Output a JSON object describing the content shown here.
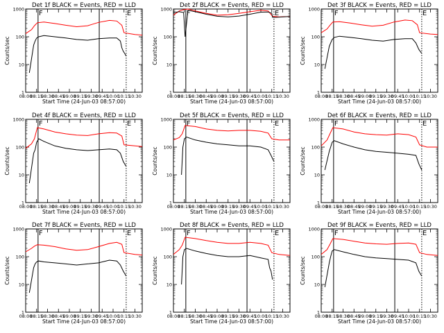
{
  "chart_data": {
    "type": "line",
    "y_scale": "log",
    "ylim": [
      1,
      1000
    ],
    "y_ticks": [
      1,
      10,
      100,
      1000
    ],
    "y_tick_labels": [
      "1",
      "10",
      "100",
      "1000"
    ],
    "x_range": [
      "08:00",
      "10:40"
    ],
    "x_ticks": [
      "08:00",
      "08:15",
      "08:30",
      "08:45",
      "09:00",
      "09:15",
      "09:30",
      "09:45",
      "10:00",
      "10:15",
      "10:30"
    ],
    "x_tick_labels": [
      "08:00",
      "08:15",
      "08:30",
      "08:45",
      "09:00",
      "09:15",
      "09:30",
      "09:45",
      "10:00",
      "10:15",
      "10:30"
    ],
    "xlabel": "Start Time (24-Jun-03 08:57:00)",
    "ylabel": "Counts/sec",
    "colors": {
      "events": "#000000",
      "lld": "#ff0000"
    },
    "markers": [
      {
        "label": "F",
        "time": "08:17",
        "style": "solid"
      },
      {
        "label": "",
        "time": "09:41",
        "style": "solid"
      },
      {
        "label": "E",
        "time": "10:18",
        "style": "dotted"
      }
    ],
    "panels": [
      {
        "title": "Det 1f BLACK = Events, RED = LLD",
        "series": [
          {
            "role": "events",
            "x": [
              "08:05",
              "08:11",
              "08:13",
              "08:15",
              "08:18",
              "08:25",
              "08:40",
              "08:55",
              "09:10",
              "09:25",
              "09:40",
              "09:55",
              "10:05",
              "10:10",
              "10:12",
              "10:14",
              "10:16",
              "10:18"
            ],
            "y": [
              5,
              50,
              70,
              90,
              100,
              110,
              100,
              90,
              80,
              75,
              85,
              90,
              90,
              70,
              40,
              30,
              25,
              20
            ]
          },
          {
            "role": "lld",
            "x": [
              "08:00",
              "08:08",
              "08:12",
              "08:16",
              "08:25",
              "08:40",
              "08:55",
              "09:10",
              "09:25",
              "09:40",
              "09:55",
              "10:05",
              "10:12",
              "10:15",
              "10:30",
              "10:40"
            ],
            "y": [
              130,
              180,
              250,
              320,
              340,
              300,
              260,
              230,
              250,
              330,
              390,
              370,
              260,
              140,
              120,
              115
            ]
          }
        ]
      },
      {
        "title": "Det 2f BLACK = Events, RED = LLD",
        "series": [
          {
            "role": "events",
            "x": [
              "08:00",
              "08:08",
              "08:14",
              "08:16",
              "08:20",
              "08:30",
              "08:45",
              "09:00",
              "09:15",
              "09:30",
              "09:45",
              "10:00",
              "10:10",
              "10:15",
              "10:16",
              "10:20",
              "10:30",
              "10:40"
            ],
            "y": [
              750,
              800,
              750,
              100,
              900,
              800,
              650,
              550,
              520,
              560,
              650,
              770,
              780,
              700,
              500,
              500,
              520,
              540
            ]
          },
          {
            "role": "lld",
            "x": [
              "08:00",
              "08:08",
              "08:14",
              "08:20",
              "08:30",
              "08:45",
              "09:00",
              "09:15",
              "09:30",
              "09:45",
              "10:00",
              "10:10",
              "10:16",
              "10:25",
              "10:40"
            ],
            "y": [
              600,
              850,
              950,
              1000,
              850,
              700,
              600,
              620,
              700,
              800,
              900,
              850,
              550,
              520,
              540
            ]
          }
        ]
      },
      {
        "title": "Det 3f BLACK = Events, RED = LLD",
        "series": [
          {
            "role": "events",
            "x": [
              "08:05",
              "08:11",
              "08:13",
              "08:15",
              "08:18",
              "08:25",
              "08:40",
              "08:55",
              "09:10",
              "09:25",
              "09:40",
              "09:55",
              "10:05",
              "10:10",
              "10:14",
              "10:18"
            ],
            "y": [
              7,
              45,
              60,
              80,
              95,
              105,
              95,
              85,
              75,
              70,
              80,
              85,
              85,
              60,
              35,
              25
            ]
          },
          {
            "role": "lld",
            "x": [
              "08:00",
              "08:08",
              "08:12",
              "08:16",
              "08:25",
              "08:40",
              "08:55",
              "09:10",
              "09:25",
              "09:40",
              "09:55",
              "10:05",
              "10:12",
              "10:15",
              "10:30",
              "10:40"
            ],
            "y": [
              140,
              190,
              260,
              340,
              350,
              310,
              270,
              240,
              260,
              340,
              400,
              380,
              270,
              140,
              125,
              120
            ]
          }
        ]
      },
      {
        "title": "Det 4f BLACK = Events, RED = LLD",
        "series": [
          {
            "role": "events",
            "x": [
              "08:05",
              "08:11",
              "08:13",
              "08:15",
              "08:18",
              "08:25",
              "08:40",
              "08:55",
              "09:10",
              "09:25",
              "09:40",
              "09:55",
              "10:05",
              "10:10",
              "10:14",
              "10:18"
            ],
            "y": [
              5,
              60,
              80,
              150,
              200,
              160,
              110,
              90,
              80,
              75,
              80,
              85,
              80,
              60,
              30,
              20
            ]
          },
          {
            "role": "lld",
            "x": [
              "08:00",
              "08:08",
              "08:12",
              "08:16",
              "08:25",
              "08:40",
              "08:55",
              "09:10",
              "09:25",
              "09:40",
              "09:55",
              "10:05",
              "10:12",
              "10:15",
              "10:30",
              "10:40"
            ],
            "y": [
              90,
              130,
              200,
              500,
              450,
              350,
              300,
              270,
              260,
              300,
              330,
              320,
              250,
              120,
              110,
              105
            ]
          }
        ]
      },
      {
        "title": "Det 5f BLACK = Events, RED = LLD",
        "series": [
          {
            "role": "events",
            "x": [
              "08:11",
              "08:13",
              "08:15",
              "08:18",
              "08:30",
              "08:45",
              "09:00",
              "09:15",
              "09:30",
              "09:45",
              "10:00",
              "10:10",
              "10:14",
              "10:18"
            ],
            "y": [
              10,
              100,
              200,
              230,
              180,
              150,
              130,
              120,
              110,
              110,
              100,
              80,
              50,
              30
            ]
          },
          {
            "role": "lld",
            "x": [
              "08:00",
              "08:08",
              "08:12",
              "08:16",
              "08:30",
              "08:45",
              "09:00",
              "09:15",
              "09:30",
              "09:45",
              "10:00",
              "10:10",
              "10:15",
              "10:25",
              "10:40"
            ],
            "y": [
              180,
              220,
              300,
              600,
              550,
              450,
              400,
              380,
              400,
              400,
              370,
              320,
              200,
              180,
              180
            ]
          }
        ]
      },
      {
        "title": "Det 6f BLACK = Events, RED = LLD",
        "series": [
          {
            "role": "events",
            "x": [
              "08:05",
              "08:11",
              "08:13",
              "08:15",
              "08:18",
              "08:30",
              "08:45",
              "09:00",
              "09:15",
              "09:30",
              "09:45",
              "10:00",
              "10:10",
              "10:14",
              "10:18"
            ],
            "y": [
              15,
              70,
              100,
              150,
              170,
              130,
              100,
              80,
              70,
              65,
              60,
              55,
              50,
              25,
              15
            ]
          },
          {
            "role": "lld",
            "x": [
              "08:00",
              "08:08",
              "08:12",
              "08:16",
              "08:30",
              "08:45",
              "09:00",
              "09:15",
              "09:30",
              "09:45",
              "10:00",
              "10:10",
              "10:15",
              "10:25",
              "10:40"
            ],
            "y": [
              110,
              180,
              300,
              500,
              450,
              350,
              300,
              280,
              270,
              300,
              280,
              230,
              120,
              100,
              100
            ]
          }
        ]
      },
      {
        "title": "Det 7f BLACK = Events, RED = LLD",
        "series": [
          {
            "role": "events",
            "x": [
              "08:05",
              "08:11",
              "08:13",
              "08:15",
              "08:18",
              "08:25",
              "08:40",
              "08:55",
              "09:10",
              "09:25",
              "09:40",
              "09:55",
              "10:05",
              "10:10",
              "10:14",
              "10:18"
            ],
            "y": [
              5,
              40,
              55,
              65,
              70,
              65,
              60,
              55,
              50,
              55,
              60,
              75,
              70,
              50,
              30,
              20
            ]
          },
          {
            "role": "lld",
            "x": [
              "08:00",
              "08:08",
              "08:12",
              "08:16",
              "08:25",
              "08:40",
              "08:55",
              "09:10",
              "09:25",
              "09:40",
              "09:55",
              "10:05",
              "10:12",
              "10:15",
              "10:30",
              "10:40"
            ],
            "y": [
              150,
              200,
              240,
              270,
              260,
              230,
              190,
              170,
              180,
              230,
              300,
              330,
              280,
              140,
              120,
              115
            ]
          }
        ]
      },
      {
        "title": "Det 8f BLACK = Events, RED = LLD",
        "series": [
          {
            "role": "events",
            "x": [
              "08:11",
              "08:13",
              "08:15",
              "08:18",
              "08:30",
              "08:45",
              "09:00",
              "09:15",
              "09:30",
              "09:45",
              "10:00",
              "10:10",
              "10:12",
              "10:14",
              "10:16"
            ],
            "y": [
              10,
              100,
              180,
              200,
              160,
              130,
              110,
              100,
              100,
              110,
              90,
              80,
              40,
              30,
              15
            ]
          },
          {
            "role": "lld",
            "x": [
              "08:00",
              "08:08",
              "08:12",
              "08:16",
              "08:30",
              "08:45",
              "09:00",
              "09:15",
              "09:30",
              "09:45",
              "10:00",
              "10:10",
              "10:15",
              "10:25",
              "10:40"
            ],
            "y": [
              120,
              180,
              260,
              500,
              450,
              380,
              330,
              300,
              300,
              330,
              300,
              260,
              140,
              120,
              110
            ]
          }
        ]
      },
      {
        "title": "Det 9f BLACK = Events, RED = LLD",
        "series": [
          {
            "role": "events",
            "x": [
              "08:05",
              "08:11",
              "08:13",
              "08:15",
              "08:18",
              "08:30",
              "08:45",
              "09:00",
              "09:15",
              "09:30",
              "09:45",
              "10:00",
              "10:10",
              "10:14",
              "10:18"
            ],
            "y": [
              8,
              60,
              100,
              160,
              180,
              150,
              120,
              100,
              90,
              85,
              80,
              75,
              60,
              30,
              20
            ]
          },
          {
            "role": "lld",
            "x": [
              "08:00",
              "08:08",
              "08:12",
              "08:16",
              "08:30",
              "08:45",
              "09:00",
              "09:15",
              "09:30",
              "09:45",
              "10:00",
              "10:10",
              "10:15",
              "10:25",
              "10:40"
            ],
            "y": [
              120,
              180,
              280,
              450,
              420,
              360,
              310,
              290,
              280,
              300,
              310,
              280,
              140,
              120,
              110
            ]
          }
        ]
      }
    ]
  }
}
